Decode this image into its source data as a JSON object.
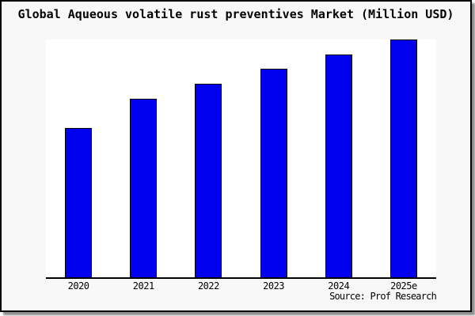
{
  "figure": {
    "source_caption": "Source: Prof Research",
    "colors": {
      "panel_background": "#f8f8f8",
      "plot_background": "#ffffff",
      "bar_fill": "#0000ee",
      "bar_border": "#000000",
      "axis_line": "#000000",
      "panel_border": "#000000",
      "drop_shadow": "#8f8f8f",
      "text": "#000000"
    }
  },
  "chart_data": {
    "type": "bar",
    "title": "Global Aqueous volatile rust preventives Market (Million USD)",
    "categories": [
      "2020",
      "2021",
      "2022",
      "2023",
      "2024",
      "2025e"
    ],
    "values": [
      62.8,
      75.1,
      81.4,
      87.7,
      93.7,
      100
    ],
    "series_note": "y-axis has no scale labels; values estimated as percent of tallest (2025e) bar",
    "xlabel": "",
    "ylabel": "",
    "ylim": [
      0,
      100
    ],
    "grid": false,
    "legend": false,
    "y_axis_visible": false,
    "source": "Source: Prof Research"
  }
}
